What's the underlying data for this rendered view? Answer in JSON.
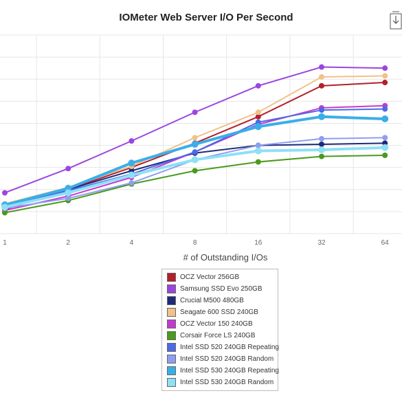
{
  "chart_data": {
    "type": "line",
    "title": "IOMeter Web Server I/O Per Second",
    "xlabel": "# of Outstanding I/Os",
    "ylabel": "",
    "x": [
      1,
      2,
      4,
      8,
      16,
      32,
      64
    ],
    "x_scale": "log2",
    "ylim": [
      0,
      9
    ],
    "grid": true,
    "legend_position": "bottom",
    "series": [
      {
        "name": "OCZ Vector 256GB",
        "color": "#b3202a",
        "values": [
          1.1,
          2.0,
          3.0,
          4.1,
          5.3,
          6.7,
          6.85
        ]
      },
      {
        "name": "Samsung SSD Evo 250GB",
        "color": "#9b45e0",
        "values": [
          1.85,
          2.95,
          4.2,
          5.5,
          6.7,
          7.55,
          7.5
        ]
      },
      {
        "name": "Crucial M500 480GB",
        "color": "#1e2a78",
        "values": [
          1.2,
          2.0,
          2.85,
          3.65,
          4.0,
          4.05,
          4.1
        ]
      },
      {
        "name": "Seagate 600 SSD 240GB",
        "color": "#f2c08a",
        "values": [
          1.35,
          2.1,
          3.05,
          4.35,
          5.5,
          7.1,
          7.15
        ]
      },
      {
        "name": "OCZ Vector 150 240GB",
        "color": "#c43ad0",
        "values": [
          1.05,
          1.7,
          2.55,
          3.7,
          4.95,
          5.7,
          5.8
        ]
      },
      {
        "name": "Corsair Force LS 240GB",
        "color": "#4a9a1c",
        "values": [
          0.95,
          1.5,
          2.25,
          2.85,
          3.25,
          3.5,
          3.55
        ]
      },
      {
        "name": "Intel SSD 520 240GB Repeating",
        "color": "#4a6ae6",
        "values": [
          1.25,
          1.95,
          2.7,
          3.7,
          5.05,
          5.6,
          5.65
        ]
      },
      {
        "name": "Intel SSD 520 240GB Random",
        "color": "#8e9ef0",
        "values": [
          1.15,
          1.6,
          2.3,
          3.35,
          4.0,
          4.3,
          4.35
        ]
      },
      {
        "name": "Intel SSD 530 240GB Repeating",
        "color": "#3aaee8",
        "values": [
          1.3,
          2.05,
          3.2,
          4.05,
          4.85,
          5.3,
          5.2
        ]
      },
      {
        "name": "Intel SSD 530 240GB Random",
        "color": "#8ee0f5",
        "values": [
          1.2,
          1.85,
          2.65,
          3.35,
          3.75,
          3.8,
          3.9
        ]
      }
    ]
  }
}
